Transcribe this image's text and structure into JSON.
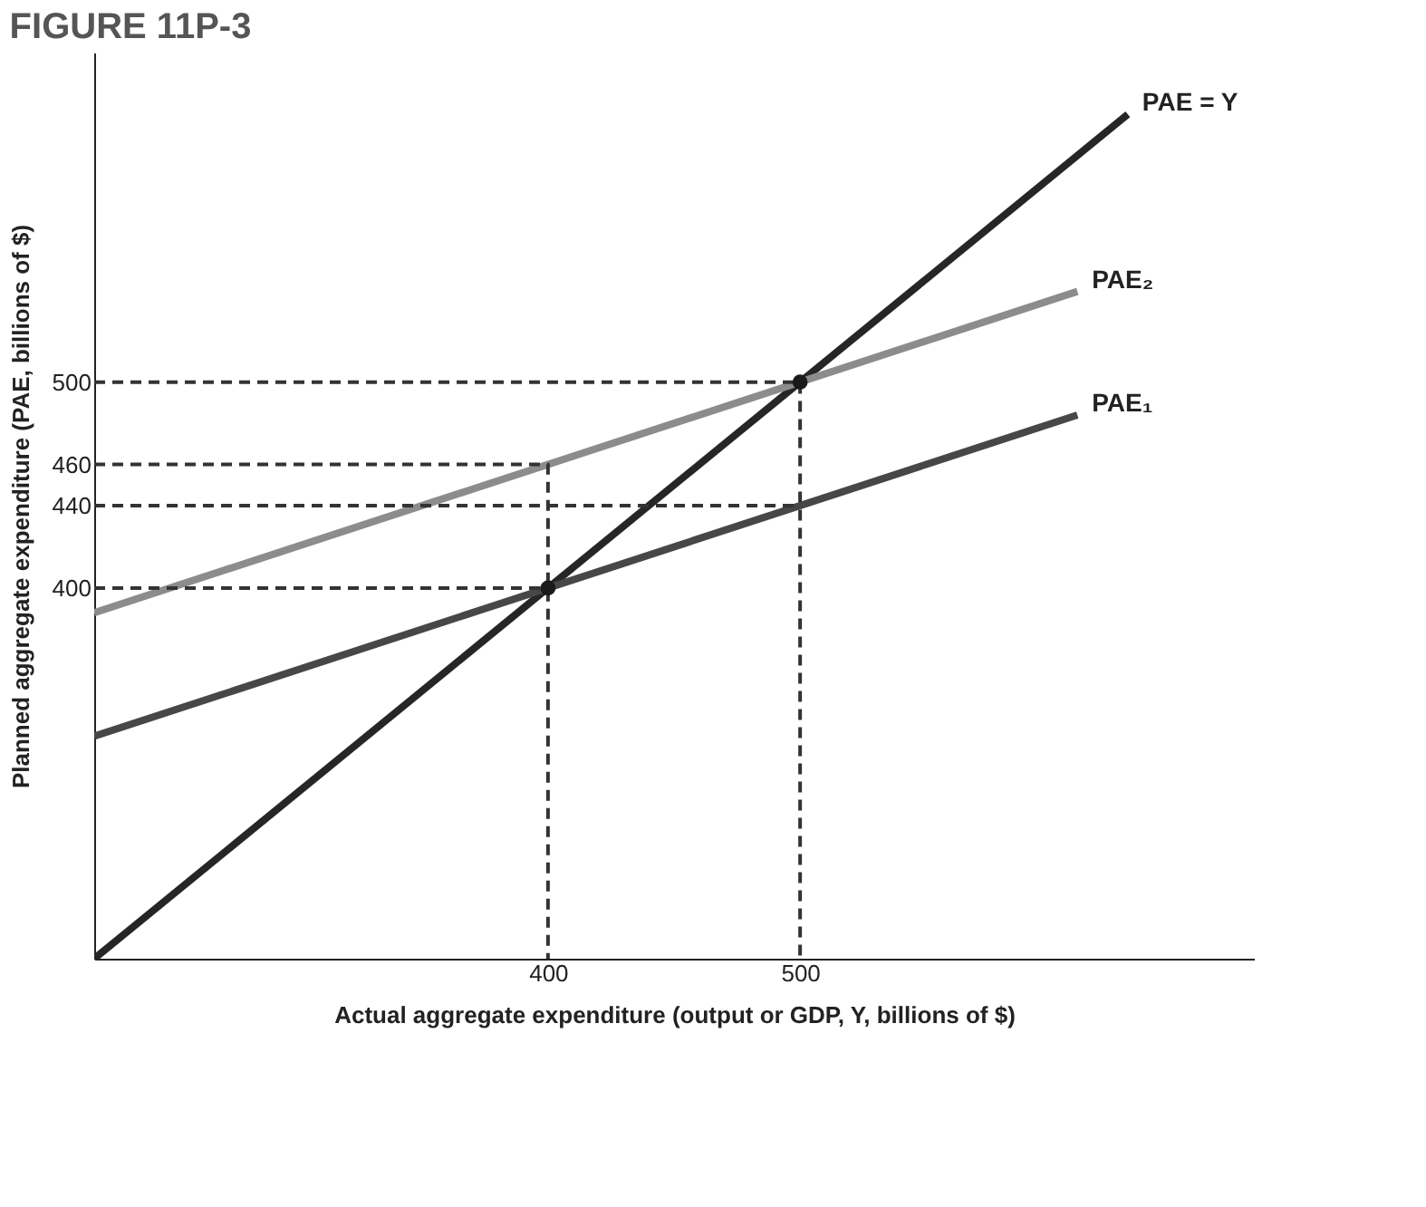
{
  "chart_data": {
    "type": "line",
    "title": "FIGURE 11P-3",
    "xlabel": "Actual aggregate expenditure (output or GDP, Y, billions of $)",
    "ylabel": "Planned aggregate expenditure (PAE, billions of $)",
    "xlim": [
      220,
      680
    ],
    "ylim": [
      220,
      660
    ],
    "xticks": [
      400,
      500
    ],
    "yticks": [
      400,
      440,
      460,
      500
    ],
    "grid": false,
    "series": [
      {
        "name": "PAE = Y",
        "color": "#262626",
        "x": [
          220,
          630
        ],
        "values": [
          220,
          630
        ],
        "line_style": "solid"
      },
      {
        "name": "PAE₂",
        "color": "#8c8c8c",
        "x": [
          220,
          610
        ],
        "values": [
          388,
          544
        ],
        "line_style": "solid"
      },
      {
        "name": "PAE₁",
        "color": "#474747",
        "x": [
          220,
          610
        ],
        "values": [
          328,
          484
        ],
        "line_style": "solid"
      },
      {
        "color": "#333333",
        "x": [
          220,
          500,
          500
        ],
        "values": [
          500,
          500,
          220
        ],
        "line_style": "dashed"
      },
      {
        "color": "#333333",
        "x": [
          220,
          400,
          400
        ],
        "values": [
          460,
          460,
          220
        ],
        "line_style": "dashed"
      },
      {
        "color": "#333333",
        "x": [
          220,
          500
        ],
        "values": [
          440,
          440
        ],
        "line_style": "dashed"
      },
      {
        "color": "#333333",
        "x": [
          220,
          400
        ],
        "values": [
          400,
          400
        ],
        "line_style": "dashed"
      },
      {
        "type": "scatter",
        "color": "#1a1a1a",
        "x": [
          400,
          500
        ],
        "values": [
          400,
          500
        ],
        "marker": "circle"
      }
    ]
  }
}
